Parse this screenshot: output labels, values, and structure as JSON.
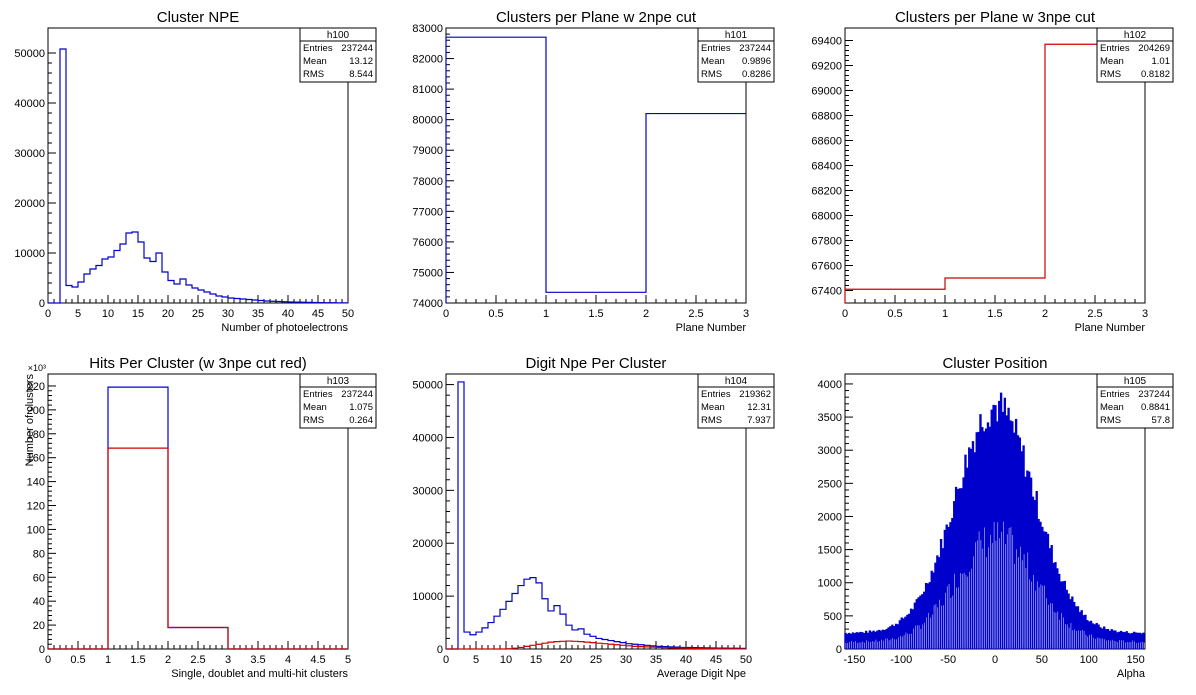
{
  "colors": {
    "blue": "#0000cc",
    "red": "#cc0000",
    "axis": "#000000"
  },
  "chart_data": [
    {
      "type": "histogram",
      "title": "Cluster NPE",
      "xlabel": "Number of photoelectrons",
      "ylabel": "",
      "xlim": [
        0,
        50
      ],
      "ylim": [
        0,
        55000
      ],
      "stats": {
        "name": "h100",
        "rows": [
          [
            "Entries",
            "237244"
          ],
          [
            "Mean",
            "13.12"
          ],
          [
            "RMS",
            "8.544"
          ]
        ]
      },
      "xticks": [
        "0",
        "5",
        "10",
        "15",
        "20",
        "25",
        "30",
        "35",
        "40",
        "45",
        "50"
      ],
      "yticks": [
        "0",
        "10000",
        "20000",
        "30000",
        "40000",
        "50000"
      ],
      "series": [
        {
          "color": "#0000cc",
          "bin_width": 1,
          "x0": 0,
          "values": [
            0,
            0,
            50800,
            3500,
            3200,
            4200,
            5800,
            6800,
            7500,
            8800,
            9200,
            10500,
            11800,
            14000,
            14200,
            12200,
            9000,
            8300,
            10000,
            6200,
            4500,
            3800,
            4800,
            3600,
            3000,
            2600,
            2200,
            1800,
            1400,
            1200,
            1000,
            900,
            800,
            700,
            600,
            500,
            400,
            350,
            300,
            250,
            200,
            180,
            150,
            120,
            100,
            80,
            60,
            50,
            40,
            30
          ]
        }
      ]
    },
    {
      "type": "histogram",
      "title": "Clusters per Plane w 2npe cut",
      "xlabel": "Plane Number",
      "ylabel": "",
      "xlim": [
        0,
        3
      ],
      "ylim": [
        74000,
        83000
      ],
      "stats": {
        "name": "h101",
        "rows": [
          [
            "Entries",
            "237244"
          ],
          [
            "Mean",
            "0.9896"
          ],
          [
            "RMS",
            "0.8286"
          ]
        ]
      },
      "xticks": [
        "0",
        "0.5",
        "1",
        "1.5",
        "2",
        "2.5",
        "3"
      ],
      "yticks": [
        "74000",
        "75000",
        "76000",
        "77000",
        "78000",
        "79000",
        "80000",
        "81000",
        "82000",
        "83000"
      ],
      "series": [
        {
          "color": "#0000cc",
          "bin_width": 1,
          "x0": 0,
          "values": [
            82700,
            74350,
            80200
          ]
        }
      ]
    },
    {
      "type": "histogram",
      "title": "Clusters per Plane w 3npe cut",
      "xlabel": "Plane Number",
      "ylabel": "",
      "xlim": [
        0,
        3
      ],
      "ylim": [
        67300,
        69500
      ],
      "stats": {
        "name": "h102",
        "rows": [
          [
            "Entries",
            "204269"
          ],
          [
            "Mean",
            "1.01"
          ],
          [
            "RMS",
            "0.8182"
          ]
        ]
      },
      "xticks": [
        "0",
        "0.5",
        "1",
        "1.5",
        "2",
        "2.5",
        "3"
      ],
      "yticks": [
        "67400",
        "67600",
        "67800",
        "68000",
        "68200",
        "68400",
        "68600",
        "68800",
        "69000",
        "69200",
        "69400"
      ],
      "series": [
        {
          "color": "#cc0000",
          "bin_width": 1,
          "x0": 0,
          "values": [
            67410,
            67500,
            69370
          ]
        }
      ]
    },
    {
      "type": "histogram",
      "title": "Hits Per Cluster (w 3npe cut red)",
      "xlabel": "Single, doublet and multi-hit clusters",
      "ylabel": "Number of clusters",
      "exponent_label": "×10³",
      "xlim": [
        0,
        5
      ],
      "ylim": [
        0,
        230
      ],
      "stats": {
        "name": "h103",
        "rows": [
          [
            "Entries",
            "237244"
          ],
          [
            "Mean",
            "1.075"
          ],
          [
            "RMS",
            "0.264"
          ]
        ]
      },
      "xticks": [
        "0",
        "0.5",
        "1",
        "1.5",
        "2",
        "2.5",
        "3",
        "3.5",
        "4",
        "4.5",
        "5"
      ],
      "yticks": [
        "0",
        "20",
        "40",
        "60",
        "80",
        "100",
        "120",
        "140",
        "160",
        "180",
        "200",
        "220"
      ],
      "series": [
        {
          "color": "#0000cc",
          "bin_width": 1,
          "x0": 0,
          "values": [
            0,
            219,
            18,
            0,
            0
          ]
        },
        {
          "color": "#cc0000",
          "bin_width": 1,
          "x0": 0,
          "values": [
            0,
            168,
            18,
            0,
            0
          ]
        }
      ]
    },
    {
      "type": "histogram",
      "title": "Digit Npe Per Cluster",
      "xlabel": "Average Digit Npe",
      "ylabel": "",
      "xlim": [
        0,
        50
      ],
      "ylim": [
        0,
        52000
      ],
      "stats": {
        "name": "h104",
        "rows": [
          [
            "Entries",
            "219362"
          ],
          [
            "Mean",
            "12.31"
          ],
          [
            "RMS",
            "7.937"
          ]
        ]
      },
      "xticks": [
        "0",
        "5",
        "10",
        "15",
        "20",
        "25",
        "30",
        "35",
        "40",
        "45",
        "50"
      ],
      "yticks": [
        "0",
        "10000",
        "20000",
        "30000",
        "40000",
        "50000"
      ],
      "series": [
        {
          "color": "#0000cc",
          "bin_width": 1,
          "x0": 0,
          "values": [
            0,
            0,
            50500,
            3200,
            2700,
            3200,
            4000,
            5000,
            6200,
            7500,
            9000,
            10500,
            12000,
            13200,
            13500,
            12500,
            9500,
            7200,
            8200,
            6600,
            4500,
            3600,
            3800,
            2800,
            2400,
            2000,
            1800,
            1600,
            1400,
            1200,
            1000,
            900,
            800,
            700,
            600,
            500,
            450,
            400,
            350,
            300,
            280,
            260,
            240,
            220,
            200,
            180,
            160,
            150,
            140,
            120
          ]
        },
        {
          "color": "#cc0000",
          "bin_width": 1,
          "x0": 0,
          "values": [
            0,
            0,
            0,
            0,
            0,
            0,
            0,
            0,
            0,
            0,
            50,
            150,
            300,
            500,
            700,
            900,
            1100,
            1300,
            1400,
            1450,
            1500,
            1450,
            1400,
            1300,
            1200,
            1100,
            1000,
            900,
            800,
            700,
            600,
            500,
            450,
            400,
            350,
            300,
            250,
            200,
            180,
            160,
            140,
            120,
            100,
            80,
            60,
            50,
            40,
            30,
            20,
            10
          ]
        }
      ]
    },
    {
      "type": "histogram",
      "title": "Cluster Position",
      "xlabel": "Alpha",
      "ylabel": "",
      "xlim": [
        -160,
        160
      ],
      "ylim": [
        0,
        4150
      ],
      "stats": {
        "name": "h105",
        "rows": [
          [
            "Entries",
            "237244"
          ],
          [
            "Mean",
            "0.8841"
          ],
          [
            "RMS",
            "57.8"
          ]
        ]
      },
      "xticks": [
        "-150",
        "-100",
        "-50",
        "0",
        "50",
        "100",
        "150"
      ],
      "xtick_values": [
        -150,
        -100,
        -50,
        0,
        50,
        100,
        150
      ],
      "yticks": [
        "0",
        "500",
        "1000",
        "1500",
        "2000",
        "2500",
        "3000",
        "3500",
        "4000"
      ],
      "series": [
        {
          "color": "#0000cc",
          "style": "spiky",
          "peak": 3950,
          "base": 250,
          "width": 42,
          "min_x": -160,
          "max_x": 160
        }
      ]
    }
  ]
}
